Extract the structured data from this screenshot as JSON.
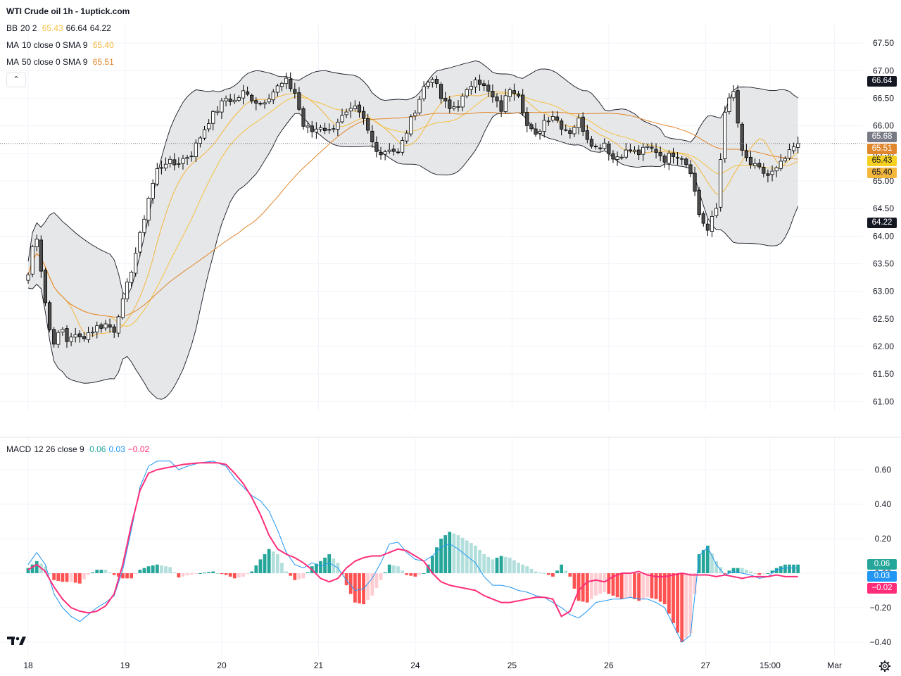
{
  "header": {
    "title": "WTI Crude oil  1h - 1uptick.com",
    "bb_label": "BB",
    "bb_params": "20 2",
    "bb_values": [
      "65.43",
      "66.64",
      "64.22"
    ],
    "ma10_label": "MA",
    "ma10_params": "10 close 0 SMA 9",
    "ma10_value": "65.40",
    "ma50_label": "MA",
    "ma50_params": "50 close 0 SMA 9",
    "ma50_value": "65.51",
    "collapse_glyph": "⌃"
  },
  "macd_legend": {
    "label": "MACD",
    "params": "12 26 close 9",
    "values": [
      "0.06",
      "0.03",
      "−0.02"
    ]
  },
  "colors": {
    "up": "#ffffff",
    "down": "#4d4d4d",
    "wick": "#000000",
    "bb_band": "#e2e3e4",
    "bb_line": "#131722",
    "bb_basis": "#f5c242",
    "ma10": "#f4b73d",
    "ma50": "#e0862c",
    "macd_line": "#2196f3",
    "signal_line": "#ff2d7a",
    "hist_pos_strong": "#26a69a",
    "hist_pos_weak": "#b2dfdb",
    "hist_neg_strong": "#ff5252",
    "hist_neg_weak": "#ffcdd2",
    "grid": "#f0f3fa"
  },
  "price_tags": [
    {
      "text": "66.64",
      "value": 66.64,
      "bg": "#131722",
      "fg": "#ffffff"
    },
    {
      "text": "65.68",
      "value": 65.68,
      "bg": "#787b86",
      "fg": "#ffffff"
    },
    {
      "text": "65.51",
      "value": 65.51,
      "bg": "#e0862c",
      "fg": "#ffffff"
    },
    {
      "text": "65.43",
      "value": 65.43,
      "bg": "#f5d020",
      "fg": "#131722"
    },
    {
      "text": "65.40",
      "value": 65.4,
      "bg": "#f4b73d",
      "fg": "#131722"
    },
    {
      "text": "64.22",
      "value": 64.22,
      "bg": "#131722",
      "fg": "#ffffff"
    }
  ],
  "macd_tags": [
    {
      "text": "0.06",
      "value": 0.06,
      "bg": "#26a69a",
      "fg": "#ffffff"
    },
    {
      "text": "0.03",
      "value": 0.03,
      "bg": "#2196f3",
      "fg": "#ffffff"
    },
    {
      "text": "−0.02",
      "value": -0.02,
      "bg": "#ff2d7a",
      "fg": "#ffffff"
    }
  ],
  "chart_data": [
    {
      "type": "candlestick",
      "title": "WTI Crude oil  1h - 1uptick.com",
      "ylim": [
        60.85,
        67.72
      ],
      "y_ticks": [
        "67.50",
        "67.00",
        "66.50",
        "66.00",
        "65.50",
        "65.00",
        "64.50",
        "64.00",
        "63.50",
        "63.00",
        "62.50",
        "62.00",
        "61.50",
        "61.00"
      ],
      "x_ticks": [
        "18",
        "19",
        "20",
        "21",
        "24",
        "25",
        "26",
        "27",
        "15:00",
        "Mar"
      ],
      "x_tick_positions": [
        0,
        22.5,
        45,
        67.5,
        90,
        112.5,
        135,
        157.5,
        172.5,
        187.5
      ],
      "bar_count": 180,
      "last_close": 65.68,
      "close_anchors": [
        [
          0,
          63.3
        ],
        [
          1,
          63.8
        ],
        [
          2,
          64.0
        ],
        [
          3,
          63.4
        ],
        [
          4,
          62.8
        ],
        [
          5,
          62.3
        ],
        [
          6,
          62.1
        ],
        [
          7,
          62.2
        ],
        [
          8,
          62.3
        ],
        [
          9,
          62.1
        ],
        [
          10,
          62.2
        ],
        [
          12,
          62.15
        ],
        [
          14,
          62.25
        ],
        [
          16,
          62.35
        ],
        [
          18,
          62.4
        ],
        [
          20,
          62.3
        ],
        [
          21,
          62.6
        ],
        [
          22,
          62.8
        ],
        [
          24,
          63.4
        ],
        [
          26,
          64.0
        ],
        [
          28,
          64.7
        ],
        [
          30,
          65.2
        ],
        [
          32,
          65.35
        ],
        [
          34,
          65.3
        ],
        [
          36,
          65.4
        ],
        [
          38,
          65.5
        ],
        [
          40,
          65.8
        ],
        [
          42,
          66.1
        ],
        [
          44,
          66.3
        ],
        [
          46,
          66.5
        ],
        [
          48,
          66.45
        ],
        [
          50,
          66.6
        ],
        [
          52,
          66.5
        ],
        [
          54,
          66.4
        ],
        [
          56,
          66.55
        ],
        [
          58,
          66.7
        ],
        [
          60,
          66.8
        ],
        [
          62,
          66.6
        ],
        [
          64,
          66.0
        ],
        [
          66,
          65.9
        ],
        [
          68,
          66.0
        ],
        [
          70,
          65.9
        ],
        [
          72,
          66.1
        ],
        [
          74,
          66.2
        ],
        [
          76,
          66.3
        ],
        [
          78,
          66.1
        ],
        [
          80,
          65.7
        ],
        [
          82,
          65.5
        ],
        [
          84,
          65.6
        ],
        [
          86,
          65.5
        ],
        [
          88,
          65.9
        ],
        [
          90,
          66.3
        ],
        [
          92,
          66.7
        ],
        [
          94,
          66.9
        ],
        [
          96,
          66.5
        ],
        [
          98,
          66.3
        ],
        [
          100,
          66.4
        ],
        [
          102,
          66.6
        ],
        [
          104,
          66.9
        ],
        [
          106,
          66.7
        ],
        [
          108,
          66.5
        ],
        [
          110,
          66.3
        ],
        [
          112,
          66.7
        ],
        [
          114,
          66.6
        ],
        [
          116,
          66.0
        ],
        [
          118,
          65.8
        ],
        [
          120,
          66.1
        ],
        [
          122,
          66.2
        ],
        [
          124,
          66.0
        ],
        [
          126,
          65.9
        ],
        [
          128,
          66.1
        ],
        [
          130,
          65.8
        ],
        [
          132,
          65.6
        ],
        [
          134,
          65.7
        ],
        [
          136,
          65.4
        ],
        [
          138,
          65.5
        ],
        [
          140,
          65.55
        ],
        [
          142,
          65.5
        ],
        [
          144,
          65.6
        ],
        [
          146,
          65.55
        ],
        [
          148,
          65.4
        ],
        [
          150,
          65.5
        ],
        [
          152,
          65.45
        ],
        [
          154,
          65.2
        ],
        [
          156,
          64.4
        ],
        [
          158,
          64.1
        ],
        [
          160,
          64.5
        ],
        [
          162,
          66.3
        ],
        [
          164,
          66.6
        ],
        [
          166,
          65.5
        ],
        [
          168,
          65.3
        ],
        [
          170,
          65.2
        ],
        [
          172,
          65.1
        ],
        [
          174,
          65.2
        ],
        [
          176,
          65.4
        ],
        [
          178,
          65.6
        ],
        [
          179,
          65.68
        ]
      ]
    },
    {
      "type": "bar+line",
      "title": "MACD 12 26 close 9",
      "ylim": [
        -0.45,
        0.71
      ],
      "y_ticks": [
        "0.60",
        "0.40",
        "0.20",
        "0.00",
        "−0.20",
        "−0.40"
      ],
      "series": [
        {
          "name": "MACD",
          "anchors": [
            [
              0,
              0.05
            ],
            [
              2,
              0.12
            ],
            [
              4,
              0.05
            ],
            [
              6,
              -0.12
            ],
            [
              8,
              -0.2
            ],
            [
              10,
              -0.25
            ],
            [
              12,
              -0.28
            ],
            [
              14,
              -0.24
            ],
            [
              16,
              -0.2
            ],
            [
              18,
              -0.17
            ],
            [
              20,
              -0.13
            ],
            [
              22,
              0.02
            ],
            [
              24,
              0.25
            ],
            [
              26,
              0.5
            ],
            [
              28,
              0.62
            ],
            [
              30,
              0.65
            ],
            [
              33,
              0.65
            ],
            [
              35,
              0.6
            ],
            [
              37,
              0.62
            ],
            [
              40,
              0.64
            ],
            [
              43,
              0.65
            ],
            [
              46,
              0.62
            ],
            [
              48,
              0.55
            ],
            [
              50,
              0.5
            ],
            [
              52,
              0.45
            ],
            [
              54,
              0.42
            ],
            [
              56,
              0.36
            ],
            [
              58,
              0.25
            ],
            [
              60,
              0.12
            ],
            [
              62,
              0.05
            ],
            [
              64,
              0.03
            ],
            [
              66,
              0.06
            ],
            [
              68,
              0.04
            ],
            [
              70,
              0.06
            ],
            [
              72,
              0.03
            ],
            [
              74,
              -0.04
            ],
            [
              76,
              -0.1
            ],
            [
              78,
              -0.09
            ],
            [
              80,
              -0.03
            ],
            [
              82,
              0.06
            ],
            [
              84,
              0.17
            ],
            [
              86,
              0.18
            ],
            [
              88,
              0.12
            ],
            [
              90,
              0.08
            ],
            [
              92,
              0.07
            ],
            [
              94,
              0.1
            ],
            [
              96,
              0.15
            ],
            [
              98,
              0.17
            ],
            [
              100,
              0.14
            ],
            [
              102,
              0.1
            ],
            [
              104,
              0.06
            ],
            [
              106,
              -0.02
            ],
            [
              108,
              -0.07
            ],
            [
              110,
              -0.07
            ],
            [
              112,
              -0.08
            ],
            [
              114,
              -0.1
            ],
            [
              116,
              -0.11
            ],
            [
              118,
              -0.13
            ],
            [
              120,
              -0.14
            ],
            [
              122,
              -0.17
            ],
            [
              124,
              -0.2
            ],
            [
              126,
              -0.24
            ],
            [
              128,
              -0.26
            ],
            [
              130,
              -0.22
            ],
            [
              132,
              -0.17
            ],
            [
              134,
              -0.16
            ],
            [
              136,
              -0.15
            ],
            [
              138,
              -0.15
            ],
            [
              140,
              -0.14
            ],
            [
              142,
              -0.15
            ],
            [
              144,
              -0.15
            ],
            [
              146,
              -0.17
            ],
            [
              148,
              -0.2
            ],
            [
              150,
              -0.3
            ],
            [
              152,
              -0.4
            ],
            [
              154,
              -0.36
            ],
            [
              156,
              0.1
            ],
            [
              158,
              0.15
            ],
            [
              160,
              0.05
            ],
            [
              162,
              -0.01
            ],
            [
              164,
              0.01
            ],
            [
              166,
              0.0
            ],
            [
              168,
              -0.01
            ],
            [
              170,
              -0.03
            ],
            [
              172,
              -0.02
            ],
            [
              174,
              0.02
            ],
            [
              176,
              0.03
            ]
          ]
        },
        {
          "name": "Signal",
          "anchors": [
            [
              0,
              0.02
            ],
            [
              2,
              0.05
            ],
            [
              4,
              0.01
            ],
            [
              6,
              -0.08
            ],
            [
              8,
              -0.15
            ],
            [
              10,
              -0.2
            ],
            [
              12,
              -0.22
            ],
            [
              14,
              -0.23
            ],
            [
              16,
              -0.22
            ],
            [
              18,
              -0.19
            ],
            [
              20,
              -0.12
            ],
            [
              22,
              0.05
            ],
            [
              24,
              0.28
            ],
            [
              26,
              0.48
            ],
            [
              28,
              0.58
            ],
            [
              30,
              0.6
            ],
            [
              32,
              0.61
            ],
            [
              36,
              0.63
            ],
            [
              40,
              0.64
            ],
            [
              44,
              0.64
            ],
            [
              46,
              0.63
            ],
            [
              48,
              0.58
            ],
            [
              50,
              0.52
            ],
            [
              52,
              0.44
            ],
            [
              54,
              0.34
            ],
            [
              56,
              0.22
            ],
            [
              58,
              0.14
            ],
            [
              60,
              0.11
            ],
            [
              62,
              0.09
            ],
            [
              64,
              0.06
            ],
            [
              66,
              0.02
            ],
            [
              68,
              -0.03
            ],
            [
              70,
              -0.05
            ],
            [
              72,
              -0.03
            ],
            [
              74,
              0.03
            ],
            [
              76,
              0.07
            ],
            [
              78,
              0.09
            ],
            [
              80,
              0.1
            ],
            [
              82,
              0.1
            ],
            [
              84,
              0.12
            ],
            [
              86,
              0.14
            ],
            [
              88,
              0.13
            ],
            [
              90,
              0.1
            ],
            [
              92,
              0.07
            ],
            [
              94,
              0.0
            ],
            [
              96,
              -0.05
            ],
            [
              98,
              -0.07
            ],
            [
              100,
              -0.08
            ],
            [
              102,
              -0.09
            ],
            [
              104,
              -0.1
            ],
            [
              106,
              -0.13
            ],
            [
              108,
              -0.15
            ],
            [
              110,
              -0.17
            ],
            [
              112,
              -0.17
            ],
            [
              114,
              -0.16
            ],
            [
              116,
              -0.15
            ],
            [
              118,
              -0.14
            ],
            [
              120,
              -0.14
            ],
            [
              122,
              -0.15
            ],
            [
              124,
              -0.25
            ],
            [
              126,
              -0.22
            ],
            [
              128,
              -0.1
            ],
            [
              130,
              -0.05
            ],
            [
              132,
              -0.04
            ],
            [
              134,
              -0.05
            ],
            [
              136,
              -0.02
            ],
            [
              138,
              0.0
            ],
            [
              140,
              0.0
            ],
            [
              142,
              0.01
            ],
            [
              144,
              -0.01
            ],
            [
              146,
              -0.02
            ],
            [
              148,
              -0.02
            ],
            [
              150,
              -0.01
            ],
            [
              152,
              0.0
            ],
            [
              154,
              -0.01
            ],
            [
              156,
              -0.01
            ],
            [
              158,
              -0.01
            ],
            [
              160,
              -0.02
            ],
            [
              162,
              -0.01
            ],
            [
              164,
              -0.02
            ],
            [
              166,
              -0.03
            ],
            [
              168,
              -0.02
            ],
            [
              170,
              -0.02
            ],
            [
              172,
              -0.02
            ],
            [
              174,
              -0.01
            ],
            [
              176,
              -0.02
            ]
          ]
        }
      ]
    }
  ]
}
